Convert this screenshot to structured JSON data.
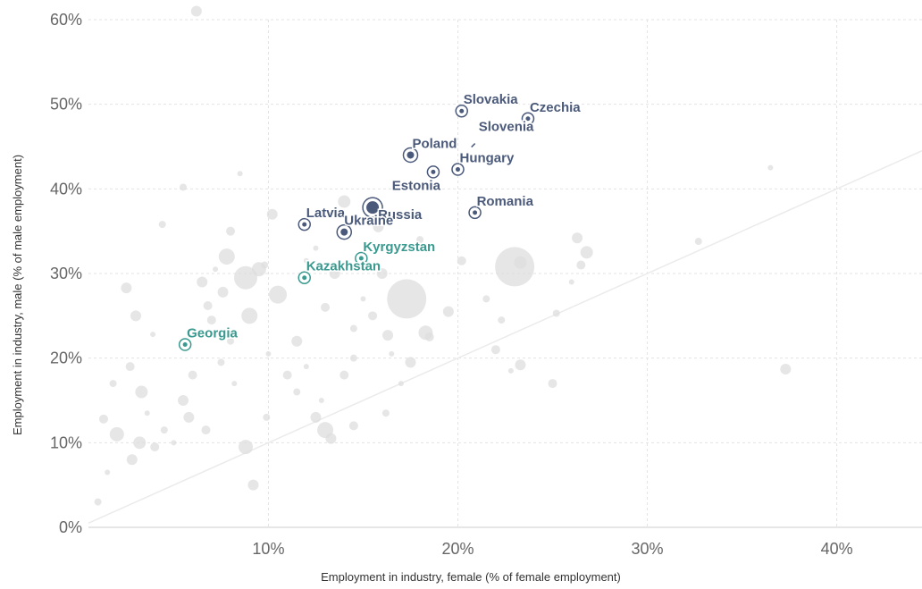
{
  "chart_data": {
    "type": "scatter",
    "xlabel": "Employment in industry, female (% of female employment)",
    "ylabel": "Employment in industry, male (% of male employment)",
    "xlim": [
      0.5,
      44.5
    ],
    "ylim": [
      0,
      60
    ],
    "x_ticks": [
      "10%",
      "20%",
      "30%",
      "40%"
    ],
    "y_ticks": [
      "0%",
      "10%",
      "20%",
      "30%",
      "40%",
      "50%",
      "60%"
    ],
    "grid": true,
    "reference_line": "y = x",
    "colors": {
      "background_points": "#dddddd",
      "europe_highlight": "#4b5a7a",
      "central_asia_highlight": "#3a9a8f",
      "grid": "#e3e3e3",
      "diagonal": "#ebebeb"
    },
    "highlighted": [
      {
        "name": "Slovakia",
        "x": 20.2,
        "y": 49.2,
        "group": "europe"
      },
      {
        "name": "Czechia",
        "x": 23.7,
        "y": 48.3,
        "group": "europe"
      },
      {
        "name": "Slovenia",
        "x": 21.0,
        "y": 46.0,
        "group": "europe"
      },
      {
        "name": "Poland",
        "x": 17.5,
        "y": 44.0,
        "group": "europe"
      },
      {
        "name": "Hungary",
        "x": 20.0,
        "y": 42.3,
        "group": "europe"
      },
      {
        "name": "Estonia",
        "x": 18.7,
        "y": 42.0,
        "group": "europe"
      },
      {
        "name": "Russia",
        "x": 15.5,
        "y": 37.8,
        "group": "europe"
      },
      {
        "name": "Romania",
        "x": 20.9,
        "y": 37.2,
        "group": "europe"
      },
      {
        "name": "Latvia",
        "x": 11.9,
        "y": 35.8,
        "group": "europe"
      },
      {
        "name": "Ukraine",
        "x": 14.0,
        "y": 34.9,
        "group": "europe"
      },
      {
        "name": "Kyrgyzstan",
        "x": 14.9,
        "y": 31.8,
        "group": "central_asia"
      },
      {
        "name": "Kazakhstan",
        "x": 11.9,
        "y": 29.5,
        "group": "central_asia"
      },
      {
        "name": "Georgia",
        "x": 5.6,
        "y": 21.6,
        "group": "central_asia"
      }
    ],
    "background_points": [
      {
        "x": 23.0,
        "y": 30.8
      },
      {
        "x": 17.3,
        "y": 27.0
      },
      {
        "x": 13.0,
        "y": 11.5
      },
      {
        "x": 8.8,
        "y": 29.5
      },
      {
        "x": 8.8,
        "y": 9.5
      },
      {
        "x": 10.5,
        "y": 27.5
      },
      {
        "x": 9.0,
        "y": 25.0
      },
      {
        "x": 2.0,
        "y": 11.0
      },
      {
        "x": 18.3,
        "y": 23.0
      },
      {
        "x": 7.8,
        "y": 32.0
      },
      {
        "x": 9.5,
        "y": 30.5
      },
      {
        "x": 3.3,
        "y": 16.0
      },
      {
        "x": 13.5,
        "y": 30.0
      },
      {
        "x": 26.8,
        "y": 32.5
      },
      {
        "x": 23.3,
        "y": 31.3
      },
      {
        "x": 2.5,
        "y": 28.3
      },
      {
        "x": 3.2,
        "y": 10.0
      },
      {
        "x": 14.0,
        "y": 38.5
      },
      {
        "x": 15.8,
        "y": 35.5
      },
      {
        "x": 16.0,
        "y": 30.0
      },
      {
        "x": 12.0,
        "y": 31.5
      },
      {
        "x": 6.5,
        "y": 29.0
      },
      {
        "x": 7.0,
        "y": 24.5
      },
      {
        "x": 8.0,
        "y": 22.0
      },
      {
        "x": 10.0,
        "y": 20.5
      },
      {
        "x": 11.5,
        "y": 22.0
      },
      {
        "x": 13.0,
        "y": 26.0
      },
      {
        "x": 14.5,
        "y": 23.5
      },
      {
        "x": 16.5,
        "y": 20.5
      },
      {
        "x": 19.5,
        "y": 25.5
      },
      {
        "x": 20.2,
        "y": 31.5
      },
      {
        "x": 18.0,
        "y": 34.0
      },
      {
        "x": 12.5,
        "y": 33.0
      },
      {
        "x": 10.2,
        "y": 37.0
      },
      {
        "x": 8.0,
        "y": 35.0
      },
      {
        "x": 5.5,
        "y": 40.2
      },
      {
        "x": 8.5,
        "y": 41.8
      },
      {
        "x": 6.2,
        "y": 61.0
      },
      {
        "x": 1.3,
        "y": 12.8
      },
      {
        "x": 1.0,
        "y": 3.0
      },
      {
        "x": 1.5,
        "y": 6.5
      },
      {
        "x": 2.8,
        "y": 8.0
      },
      {
        "x": 4.0,
        "y": 9.5
      },
      {
        "x": 4.5,
        "y": 11.5
      },
      {
        "x": 5.0,
        "y": 10.0
      },
      {
        "x": 5.5,
        "y": 15.0
      },
      {
        "x": 6.0,
        "y": 18.0
      },
      {
        "x": 7.5,
        "y": 19.5
      },
      {
        "x": 8.2,
        "y": 17.0
      },
      {
        "x": 9.2,
        "y": 5.0
      },
      {
        "x": 11.0,
        "y": 18.0
      },
      {
        "x": 11.5,
        "y": 16.0
      },
      {
        "x": 12.0,
        "y": 19.0
      },
      {
        "x": 12.5,
        "y": 13.0
      },
      {
        "x": 14.0,
        "y": 18.0
      },
      {
        "x": 14.5,
        "y": 20.0
      },
      {
        "x": 17.0,
        "y": 17.0
      },
      {
        "x": 17.5,
        "y": 19.5
      },
      {
        "x": 18.5,
        "y": 22.5
      },
      {
        "x": 22.3,
        "y": 24.5
      },
      {
        "x": 22.8,
        "y": 18.5
      },
      {
        "x": 23.3,
        "y": 19.2
      },
      {
        "x": 25.0,
        "y": 17.0
      },
      {
        "x": 25.2,
        "y": 25.3
      },
      {
        "x": 26.0,
        "y": 29.0
      },
      {
        "x": 26.3,
        "y": 34.2
      },
      {
        "x": 26.5,
        "y": 31.0
      },
      {
        "x": 32.7,
        "y": 33.8
      },
      {
        "x": 36.5,
        "y": 42.5
      },
      {
        "x": 37.3,
        "y": 18.7
      },
      {
        "x": 22.0,
        "y": 21.0
      },
      {
        "x": 21.5,
        "y": 27.0
      },
      {
        "x": 15.0,
        "y": 27.0
      },
      {
        "x": 16.3,
        "y": 22.7
      },
      {
        "x": 15.5,
        "y": 25.0
      },
      {
        "x": 9.8,
        "y": 31.0
      },
      {
        "x": 7.2,
        "y": 30.5
      },
      {
        "x": 7.6,
        "y": 27.8
      },
      {
        "x": 6.8,
        "y": 26.2
      },
      {
        "x": 4.4,
        "y": 35.8
      },
      {
        "x": 3.9,
        "y": 22.8
      },
      {
        "x": 3.0,
        "y": 25.0
      },
      {
        "x": 2.7,
        "y": 19.0
      },
      {
        "x": 1.8,
        "y": 17.0
      },
      {
        "x": 3.6,
        "y": 13.5
      },
      {
        "x": 5.8,
        "y": 13.0
      },
      {
        "x": 6.7,
        "y": 11.5
      },
      {
        "x": 9.9,
        "y": 13.0
      },
      {
        "x": 12.8,
        "y": 15.0
      },
      {
        "x": 13.3,
        "y": 10.5
      },
      {
        "x": 14.5,
        "y": 12.0
      },
      {
        "x": 16.2,
        "y": 13.5
      }
    ]
  }
}
